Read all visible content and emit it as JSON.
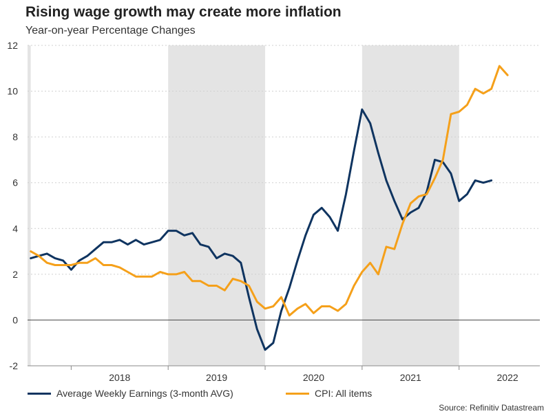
{
  "title": "Rising wage growth may create more inflation",
  "subtitle": "Year-on-year Percentage Changes",
  "source": "Source: Refinitiv Datastream",
  "colors": {
    "awe": "#0f3460",
    "cpi": "#f5a01a",
    "shade": "#e4e4e4",
    "grid": "#cfcfcf"
  },
  "chart_data": {
    "type": "line",
    "title": "Rising wage growth may create more inflation",
    "subtitle": "Year-on-year Percentage Changes",
    "xlabel": "",
    "ylabel": "",
    "ylim": [
      -2,
      12
    ],
    "xlim": [
      2017.55,
      2022.833
    ],
    "yticks": [
      -2,
      0,
      2,
      4,
      6,
      8,
      10,
      12
    ],
    "xtick_labels": [
      {
        "label": "2018",
        "x": 2018.5
      },
      {
        "label": "2019",
        "x": 2019.5
      },
      {
        "label": "2020",
        "x": 2020.5
      },
      {
        "label": "2021",
        "x": 2021.5
      },
      {
        "label": "2022",
        "x": 2022.5
      }
    ],
    "year_dividers": [
      2018,
      2019,
      2020,
      2021,
      2022
    ],
    "shaded_periods": [
      [
        2017.55,
        2017.583
      ],
      [
        2019.0,
        2020.0
      ],
      [
        2021.0,
        2022.0
      ]
    ],
    "legend_position": "bottom",
    "series": [
      {
        "name": "Average Weekly Earnings (3-month AVG)",
        "color": "#0f3460",
        "x0": 2017.5,
        "step": 0.08333,
        "values": [
          2.6,
          2.7,
          2.8,
          2.9,
          2.7,
          2.6,
          2.2,
          2.6,
          2.8,
          3.1,
          3.4,
          3.4,
          3.5,
          3.3,
          3.5,
          3.3,
          3.4,
          3.5,
          3.9,
          3.9,
          3.7,
          3.8,
          3.3,
          3.2,
          2.7,
          2.9,
          2.8,
          2.5,
          1.0,
          -0.4,
          -1.3,
          -1.0,
          0.4,
          1.4,
          2.6,
          3.7,
          4.6,
          4.9,
          4.5,
          3.9,
          5.5,
          7.4,
          9.2,
          8.6,
          7.3,
          6.1,
          5.2,
          4.4,
          4.7,
          4.9,
          5.6,
          7.0,
          6.9,
          6.4,
          5.2,
          5.5,
          6.1,
          6.0,
          6.1
        ]
      },
      {
        "name": "CPI: All items",
        "color": "#f5a01a",
        "x0": 2017.5,
        "step": 0.08333,
        "values": [
          3.0,
          3.0,
          2.8,
          2.5,
          2.4,
          2.4,
          2.4,
          2.5,
          2.5,
          2.7,
          2.4,
          2.4,
          2.3,
          2.1,
          1.9,
          1.9,
          1.9,
          2.1,
          2.0,
          2.0,
          2.1,
          1.7,
          1.7,
          1.5,
          1.5,
          1.3,
          1.8,
          1.7,
          1.5,
          0.8,
          0.5,
          0.6,
          1.0,
          0.2,
          0.5,
          0.7,
          0.3,
          0.6,
          0.6,
          0.4,
          0.7,
          1.5,
          2.1,
          2.5,
          2.0,
          3.2,
          3.1,
          4.2,
          5.1,
          5.4,
          5.5,
          6.2,
          7.0,
          9.0,
          9.1,
          9.4,
          10.1,
          9.9,
          10.1,
          11.1,
          10.7
        ]
      }
    ]
  }
}
